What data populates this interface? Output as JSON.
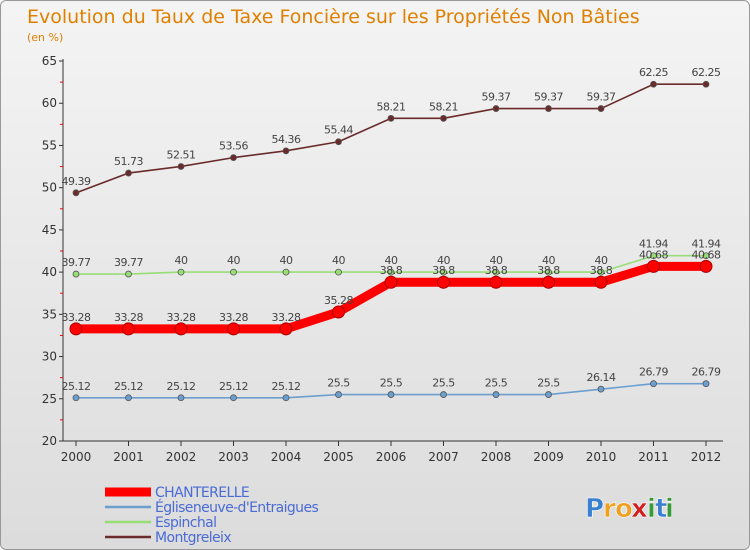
{
  "chart_data": {
    "type": "line",
    "title": "Evolution du Taux de Taxe Foncière sur les Propriétés Non Bâties",
    "subtitle": "(en %)",
    "xlabel": "",
    "ylabel": "",
    "ylim": [
      20,
      65
    ],
    "yticks": [
      20,
      25,
      30,
      35,
      40,
      45,
      50,
      55,
      60,
      65
    ],
    "categories": [
      "2000",
      "2001",
      "2002",
      "2003",
      "2004",
      "2005",
      "2006",
      "2007",
      "2008",
      "2009",
      "2010",
      "2011",
      "2012"
    ],
    "series": [
      {
        "name": "CHANTERELLE",
        "color": "#ff0000",
        "labels": [
          "33.28",
          "33.28",
          "33.28",
          "33.28",
          "33.28",
          "35.28",
          "38.8",
          "38.8",
          "38.8",
          "38.8",
          "38.8",
          "40.68",
          "40.68"
        ],
        "values": [
          33.28,
          33.28,
          33.28,
          33.28,
          33.28,
          35.28,
          38.8,
          38.8,
          38.8,
          38.8,
          38.8,
          40.68,
          40.68
        ]
      },
      {
        "name": "Égliseneuve-d'Entraigues",
        "color": "#6b9fcf",
        "labels": [
          "25.12",
          "25.12",
          "25.12",
          "25.12",
          "25.12",
          "25.5",
          "25.5",
          "25.5",
          "25.5",
          "25.5",
          "26.14",
          "26.79",
          "26.79"
        ],
        "values": [
          25.12,
          25.12,
          25.12,
          25.12,
          25.12,
          25.5,
          25.5,
          25.5,
          25.5,
          25.5,
          26.14,
          26.79,
          26.79
        ]
      },
      {
        "name": "Espinchal",
        "color": "#99dd77",
        "labels": [
          "39.77",
          "39.77",
          "40",
          "40",
          "40",
          "40",
          "40",
          "40",
          "40",
          "40",
          "40",
          "41.94",
          "41.94"
        ],
        "values": [
          39.77,
          39.77,
          40,
          40,
          40,
          40,
          40,
          40,
          40,
          40,
          40,
          41.94,
          41.94
        ]
      },
      {
        "name": "Montgreleix",
        "color": "#6a2b2b",
        "labels": [
          "49.39",
          "51.73",
          "52.51",
          "53.56",
          "54.36",
          "55.44",
          "58.21",
          "58.21",
          "59.37",
          "59.37",
          "59.37",
          "62.25",
          "62.25"
        ],
        "values": [
          49.39,
          51.73,
          52.51,
          53.56,
          54.36,
          55.44,
          58.21,
          58.21,
          59.37,
          59.37,
          59.37,
          62.25,
          62.25
        ]
      }
    ],
    "legend_position": "bottom-left"
  },
  "brand": {
    "logo_text": "Proxiti",
    "logo_letters": [
      {
        "ch": "P",
        "color": "#3a7fd0"
      },
      {
        "ch": "r",
        "color": "#f0a020"
      },
      {
        "ch": "o",
        "color": "#f0a020"
      },
      {
        "ch": "x",
        "color": "#d02020"
      },
      {
        "ch": "i",
        "color": "#3a9a3a"
      },
      {
        "ch": "t",
        "color": "#3a7fd0"
      },
      {
        "ch": "i",
        "color": "#3a9a3a"
      }
    ]
  },
  "colors": {
    "title": "#e08000",
    "axis": "#333333",
    "label": "#333333",
    "tick_red": "#ff0000"
  }
}
